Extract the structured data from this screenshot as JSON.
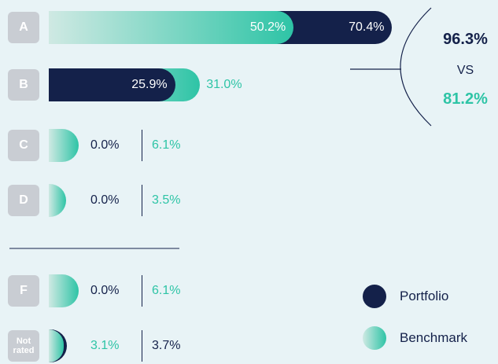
{
  "chart_data": {
    "type": "bar",
    "categories": [
      "A",
      "B",
      "C",
      "D",
      "F",
      "Not rated"
    ],
    "series": [
      {
        "name": "Portfolio",
        "color": "#14214a",
        "values": [
          70.4,
          25.9,
          0,
          0,
          0,
          3.7
        ],
        "value_labels": [
          "70.4%",
          "25.9%",
          "0.0%",
          "0.0%",
          "0.0%",
          "3.7%"
        ]
      },
      {
        "name": "Benchmark",
        "color": "#2ec4a6",
        "values": [
          50.2,
          31.0,
          6.1,
          3.5,
          6.1,
          3.1
        ],
        "value_labels": [
          "50.2%",
          "31.0%",
          "6.1%",
          "3.5%",
          "6.1%",
          "3.1%"
        ]
      }
    ],
    "summary": {
      "portfolio": "96.3%",
      "vs": "VS",
      "benchmark": "81.2%"
    }
  }
}
